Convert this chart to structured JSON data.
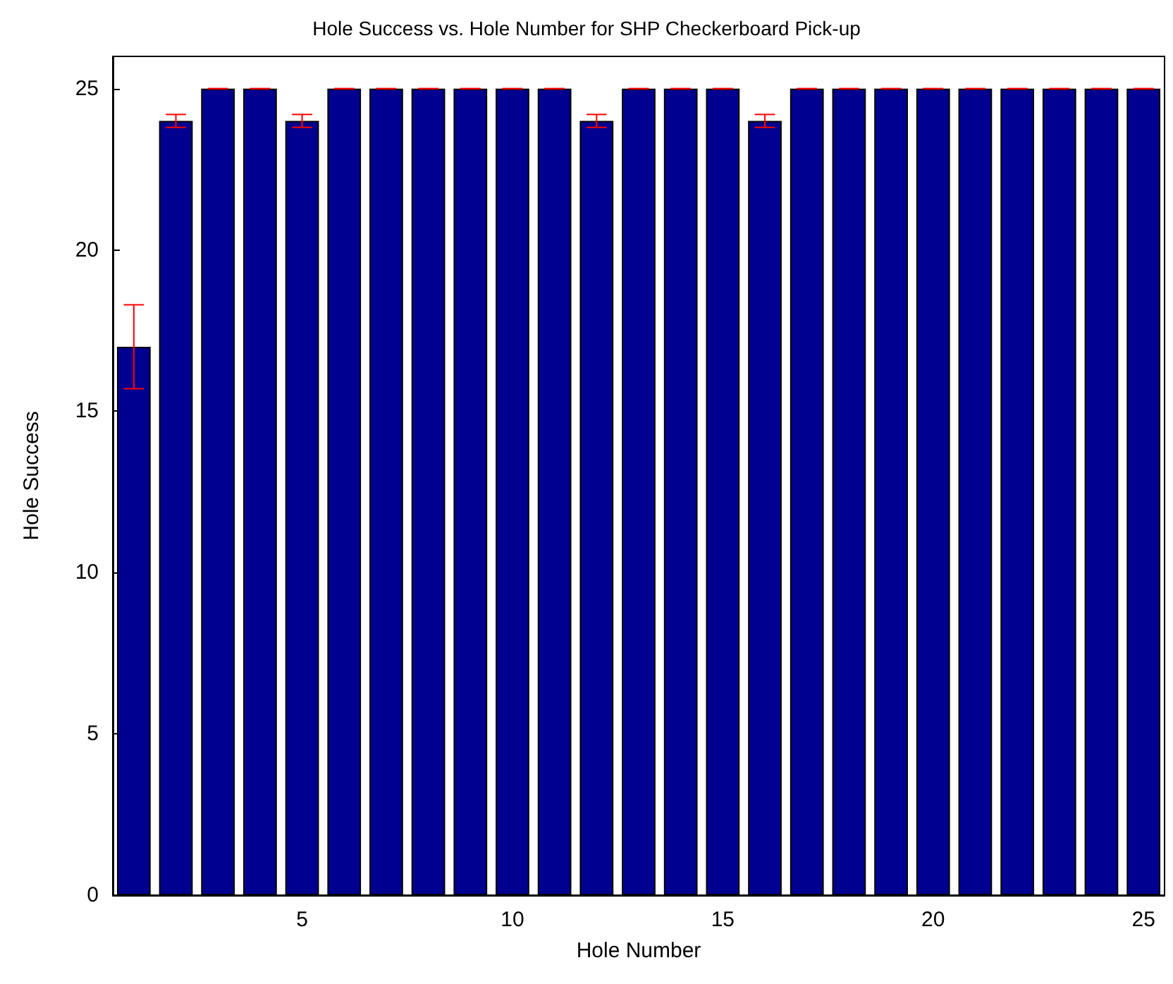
{
  "chart_data": {
    "type": "bar",
    "title": "Hole Success vs. Hole Number for SHP Checkerboard Pick-up",
    "xlabel": "Hole Number",
    "ylabel": "Hole Success",
    "x": [
      1,
      2,
      3,
      4,
      5,
      6,
      7,
      8,
      9,
      10,
      11,
      12,
      13,
      14,
      15,
      16,
      17,
      18,
      19,
      20,
      21,
      22,
      23,
      24,
      25
    ],
    "values": [
      17,
      24,
      25,
      25,
      24,
      25,
      25,
      25,
      25,
      25,
      25,
      24,
      25,
      25,
      25,
      24,
      25,
      25,
      25,
      25,
      25,
      25,
      25,
      25,
      25
    ],
    "errors": [
      1.3,
      0.2,
      0,
      0,
      0.2,
      0,
      0,
      0,
      0,
      0,
      0,
      0.2,
      0,
      0,
      0,
      0.2,
      0,
      0,
      0,
      0,
      0,
      0,
      0,
      0,
      0
    ],
    "color": "#000090",
    "xlim": [
      0.5,
      25.5
    ],
    "xticks": [
      5,
      10,
      15,
      20,
      25
    ],
    "ylim": [
      0,
      26
    ],
    "yticks": [
      0,
      5,
      10,
      15,
      20,
      25
    ],
    "grid": false
  }
}
